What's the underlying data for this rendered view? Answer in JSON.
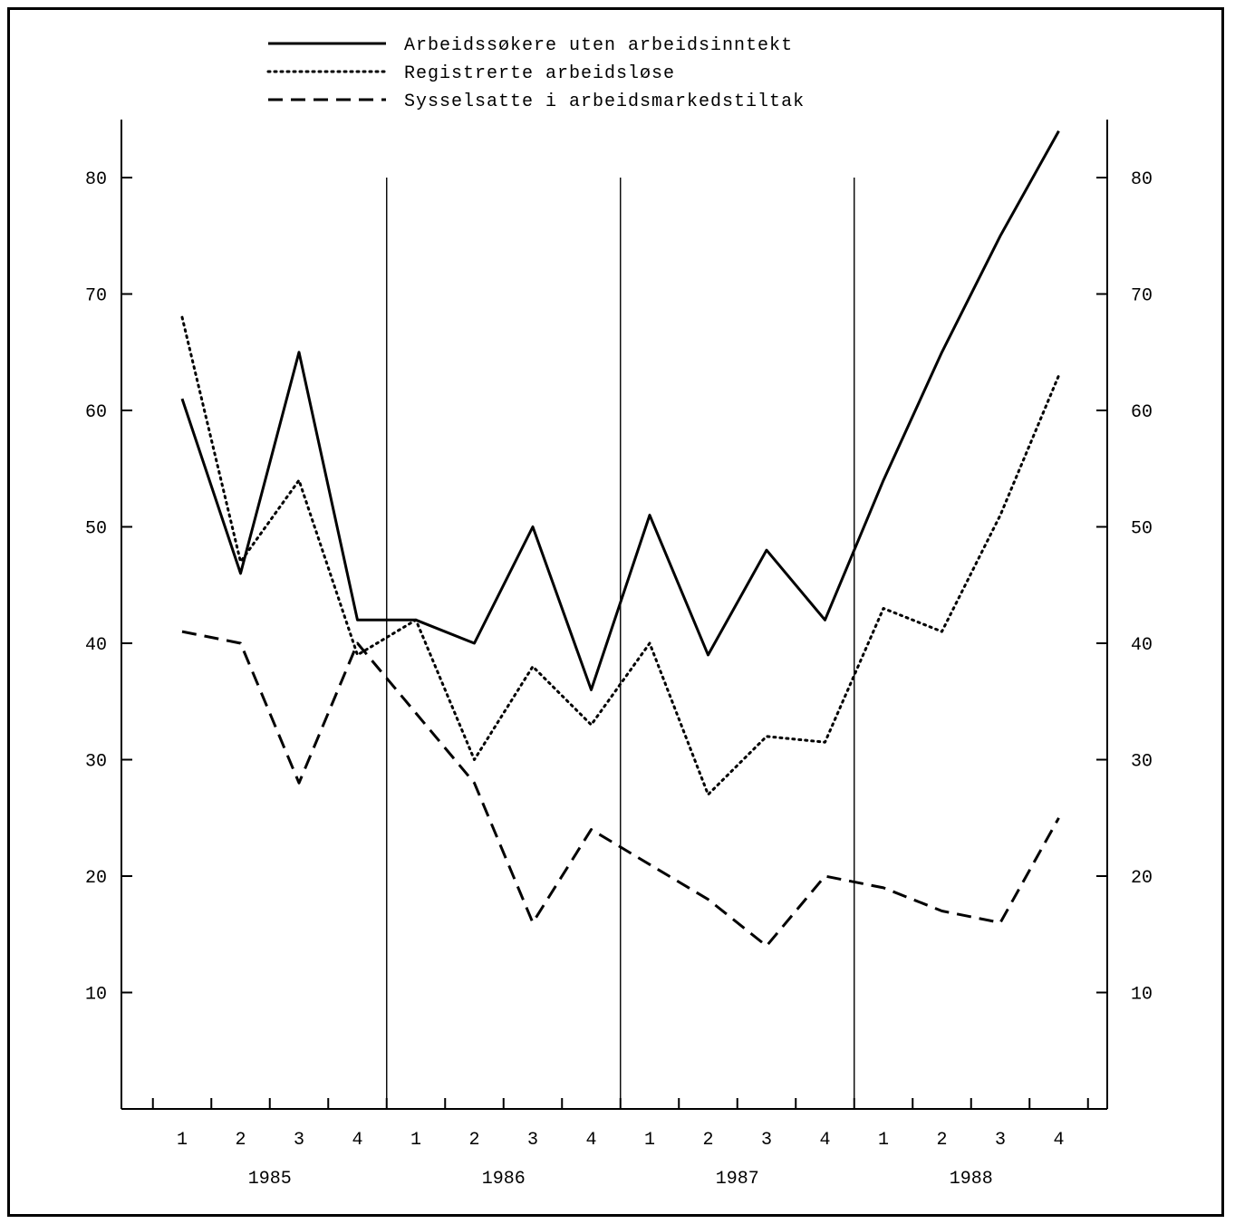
{
  "chart_data": {
    "type": "line",
    "title": "",
    "xlabel": "",
    "ylabel": "",
    "ylim": [
      0,
      84
    ],
    "y_ticks": [
      10,
      20,
      30,
      40,
      50,
      60,
      70,
      80
    ],
    "y_tick_labels": [
      "10",
      "20",
      "30",
      "40",
      "50",
      "60",
      "70",
      "80"
    ],
    "quarter_labels": [
      "1",
      "2",
      "3",
      "4",
      "1",
      "2",
      "3",
      "4",
      "1",
      "2",
      "3",
      "4",
      "1",
      "2",
      "3",
      "4"
    ],
    "years": [
      "1985",
      "1986",
      "1987",
      "1988"
    ],
    "legend_position": "top",
    "grid": false,
    "series": [
      {
        "name": "Arbeidssøkere uten arbeidsinntekt",
        "style": "solid",
        "values": [
          61,
          46,
          65,
          42,
          42,
          40,
          50,
          36,
          51,
          39,
          48,
          42,
          54,
          65,
          75,
          84
        ]
      },
      {
        "name": "Registrerte arbeidsløse",
        "style": "dotted",
        "values": [
          68,
          47,
          54,
          39,
          42,
          30,
          38,
          33,
          40,
          27,
          32,
          31.5,
          43,
          41,
          51,
          63
        ]
      },
      {
        "name": "Sysselsatte i arbeidsmarkedstiltak",
        "style": "dashed",
        "values": [
          41,
          40,
          28,
          40,
          34,
          28,
          16,
          24,
          21,
          18,
          14,
          20,
          19,
          17,
          16,
          25
        ]
      }
    ]
  }
}
